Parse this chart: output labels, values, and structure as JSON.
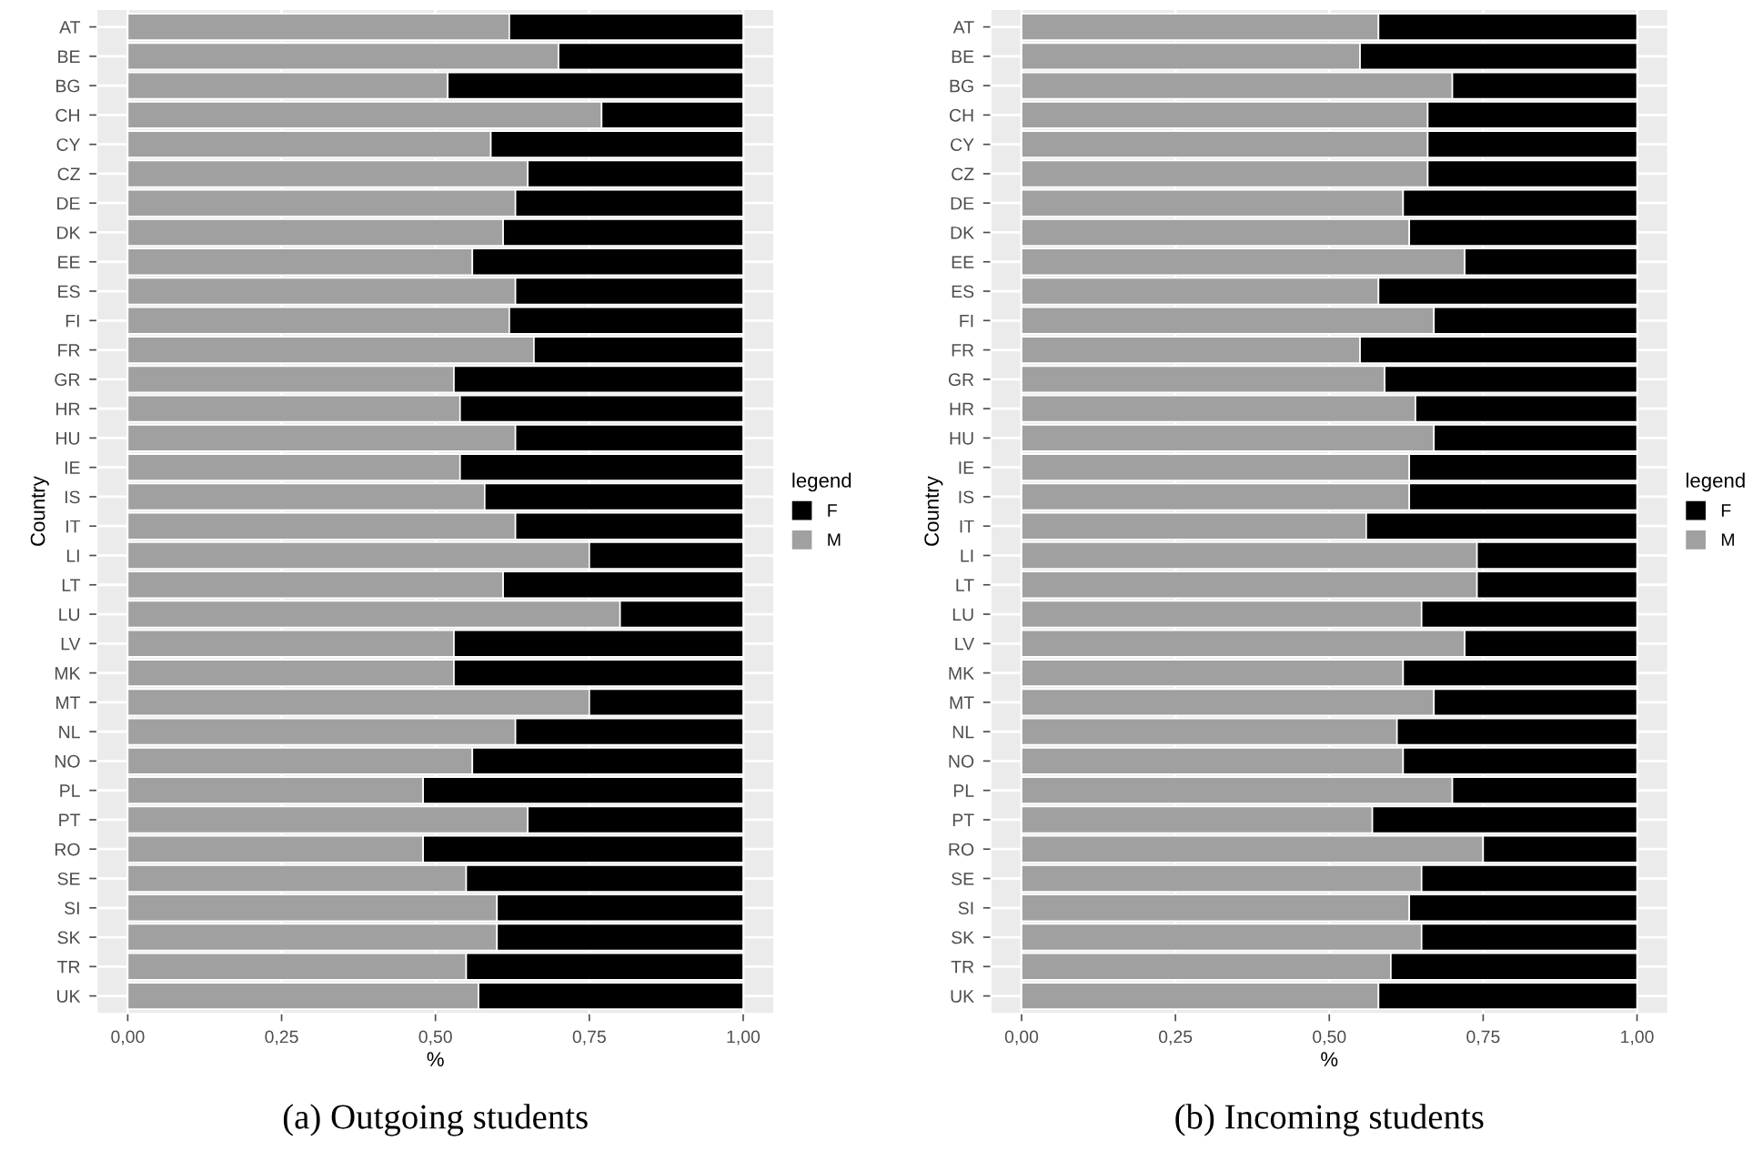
{
  "chart_data": [
    {
      "type": "bar",
      "orientation": "horizontal",
      "stacked": true,
      "title": "(a) Outgoing students",
      "xlabel": "%",
      "ylabel": "Country",
      "legend_title": "legend",
      "legend": "right",
      "grid": true,
      "categories": [
        "AT",
        "BE",
        "BG",
        "CH",
        "CY",
        "CZ",
        "DE",
        "DK",
        "EE",
        "ES",
        "FI",
        "FR",
        "GR",
        "HR",
        "HU",
        "IE",
        "IS",
        "IT",
        "LI",
        "LT",
        "LU",
        "LV",
        "MK",
        "MT",
        "NL",
        "NO",
        "PL",
        "PT",
        "RO",
        "SE",
        "SI",
        "SK",
        "TR",
        "UK"
      ],
      "series": [
        {
          "name": "M",
          "color": "#a0a0a0",
          "values": [
            0.62,
            0.7,
            0.52,
            0.77,
            0.59,
            0.65,
            0.63,
            0.61,
            0.56,
            0.63,
            0.62,
            0.66,
            0.53,
            0.54,
            0.63,
            0.54,
            0.58,
            0.63,
            0.75,
            0.61,
            0.8,
            0.53,
            0.53,
            0.75,
            0.63,
            0.56,
            0.48,
            0.65,
            0.48,
            0.55,
            0.6,
            0.6,
            0.55,
            0.57
          ]
        },
        {
          "name": "F",
          "color": "#000000",
          "values": [
            0.38,
            0.3,
            0.48,
            0.23,
            0.41,
            0.35,
            0.37,
            0.39,
            0.44,
            0.37,
            0.38,
            0.34,
            0.47,
            0.46,
            0.37,
            0.46,
            0.42,
            0.37,
            0.25,
            0.39,
            0.2,
            0.47,
            0.47,
            0.25,
            0.37,
            0.44,
            0.52,
            0.35,
            0.52,
            0.45,
            0.4,
            0.4,
            0.45,
            0.43
          ]
        }
      ],
      "xlim": [
        -0.05,
        1.05
      ],
      "xticks": [
        {
          "value": 0,
          "label": "0,00"
        },
        {
          "value": 0.25,
          "label": "0,25"
        },
        {
          "value": 0.5,
          "label": "0,50"
        },
        {
          "value": 0.75,
          "label": "0,75"
        },
        {
          "value": 1,
          "label": "1,00"
        }
      ]
    },
    {
      "type": "bar",
      "orientation": "horizontal",
      "stacked": true,
      "title": "(b) Incoming students",
      "xlabel": "%",
      "ylabel": "Country",
      "legend_title": "legend",
      "legend": "right",
      "grid": true,
      "categories": [
        "AT",
        "BE",
        "BG",
        "CH",
        "CY",
        "CZ",
        "DE",
        "DK",
        "EE",
        "ES",
        "FI",
        "FR",
        "GR",
        "HR",
        "HU",
        "IE",
        "IS",
        "IT",
        "LI",
        "LT",
        "LU",
        "LV",
        "MK",
        "MT",
        "NL",
        "NO",
        "PL",
        "PT",
        "RO",
        "SE",
        "SI",
        "SK",
        "TR",
        "UK"
      ],
      "series": [
        {
          "name": "M",
          "color": "#a0a0a0",
          "values": [
            0.58,
            0.55,
            0.7,
            0.66,
            0.66,
            0.66,
            0.62,
            0.63,
            0.72,
            0.58,
            0.67,
            0.55,
            0.59,
            0.64,
            0.67,
            0.63,
            0.63,
            0.56,
            0.74,
            0.74,
            0.65,
            0.72,
            0.62,
            0.67,
            0.61,
            0.62,
            0.7,
            0.57,
            0.75,
            0.65,
            0.63,
            0.65,
            0.6,
            0.58
          ]
        },
        {
          "name": "F",
          "color": "#000000",
          "values": [
            0.42,
            0.45,
            0.3,
            0.34,
            0.34,
            0.34,
            0.38,
            0.37,
            0.28,
            0.42,
            0.33,
            0.45,
            0.41,
            0.36,
            0.33,
            0.37,
            0.37,
            0.44,
            0.26,
            0.26,
            0.35,
            0.28,
            0.38,
            0.33,
            0.39,
            0.38,
            0.3,
            0.43,
            0.25,
            0.35,
            0.37,
            0.35,
            0.4,
            0.42
          ]
        }
      ],
      "xlim": [
        -0.05,
        1.05
      ],
      "xticks": [
        {
          "value": 0,
          "label": "0,00"
        },
        {
          "value": 0.25,
          "label": "0,25"
        },
        {
          "value": 0.5,
          "label": "0,50"
        },
        {
          "value": 0.75,
          "label": "0,75"
        },
        {
          "value": 1,
          "label": "1,00"
        }
      ]
    }
  ]
}
